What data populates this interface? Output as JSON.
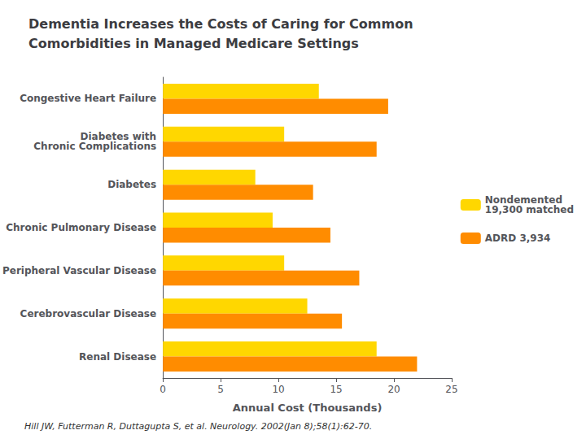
{
  "chart_data": {
    "type": "bar",
    "orientation": "horizontal",
    "title": "Dementia Increases the Costs of Caring for Common\nComorbidities in Managed Medicare Settings",
    "categories": [
      "Congestive Heart Failure",
      "Diabetes with\nChronic Complications",
      "Diabetes",
      "Chronic Pulmonary Disease",
      "Peripheral Vascular Disease",
      "Cerebrovascular Disease",
      "Renal Disease"
    ],
    "series": [
      {
        "name": "Nondemented\n19,300 matched",
        "color": "#FFD700",
        "values": [
          13.5,
          10.5,
          8.0,
          9.5,
          10.5,
          12.5,
          18.5
        ]
      },
      {
        "name": "ADRD 3,934",
        "color": "#FF8C00",
        "values": [
          19.5,
          18.5,
          13.0,
          14.5,
          17.0,
          15.5,
          22.0
        ]
      }
    ],
    "xlabel": "Annual Cost (Thousands)",
    "xlim": [
      0,
      25
    ],
    "xticks": [
      0,
      5,
      10,
      15,
      20,
      25
    ],
    "grid": false,
    "legend": "right",
    "annotations": [
      "Hill JW, Futterman R, Duttagupta S, et al. Neurology. 2002(Jan 8);58(1):62-70."
    ]
  }
}
